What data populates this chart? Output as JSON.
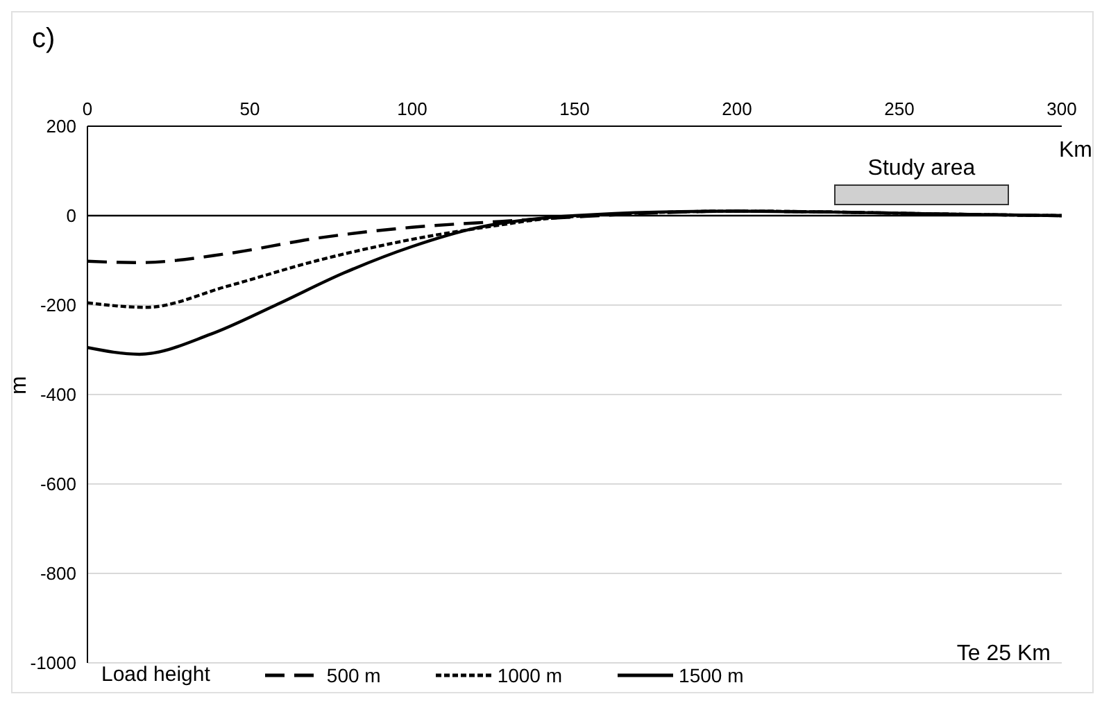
{
  "chart_data": {
    "type": "line",
    "title": "c)",
    "xlabel": "Km",
    "ylabel": "m",
    "legend_title": "Load height",
    "annotations": [
      "Te 25 Km",
      "Study area"
    ],
    "xlim": [
      0,
      300
    ],
    "xticks": [
      0,
      50,
      100,
      150,
      200,
      250,
      300
    ],
    "ylim": [
      -1000,
      200
    ],
    "yticks": [
      -1000,
      -800,
      -600,
      -400,
      -200,
      0,
      200
    ],
    "grid": "y",
    "legend": "bottom",
    "marker": "none",
    "ref_lines": [
      {
        "axis": "y",
        "value": 0,
        "color": "#000000"
      }
    ],
    "series": [
      {
        "name": "500 m",
        "color": "#000000",
        "line_style": "dashed",
        "x": [
          0,
          16,
          43,
          71,
          100,
          127,
          150,
          175,
          200,
          230,
          260,
          300
        ],
        "values": [
          -102,
          -105,
          -85,
          -50,
          -26,
          -13,
          -3,
          6,
          10,
          8,
          4,
          0
        ]
      },
      {
        "name": "1000 m",
        "color": "#000000",
        "line_style": "dotted",
        "x": [
          0,
          18,
          43,
          71,
          100,
          127,
          141,
          150,
          175,
          200,
          230,
          260,
          300
        ],
        "values": [
          -195,
          -205,
          -158,
          -100,
          -53,
          -21,
          -7,
          -2,
          7,
          10,
          8,
          4,
          0
        ]
      },
      {
        "name": "1500 m",
        "color": "#000000",
        "line_style": "solid",
        "x": [
          0,
          16,
          38,
          58,
          79,
          100,
          120,
          141,
          150,
          175,
          200,
          230,
          260,
          300
        ],
        "values": [
          -295,
          -310,
          -265,
          -200,
          -128,
          -69,
          -27,
          -5,
          0,
          8,
          10,
          8,
          4,
          0
        ]
      }
    ]
  }
}
